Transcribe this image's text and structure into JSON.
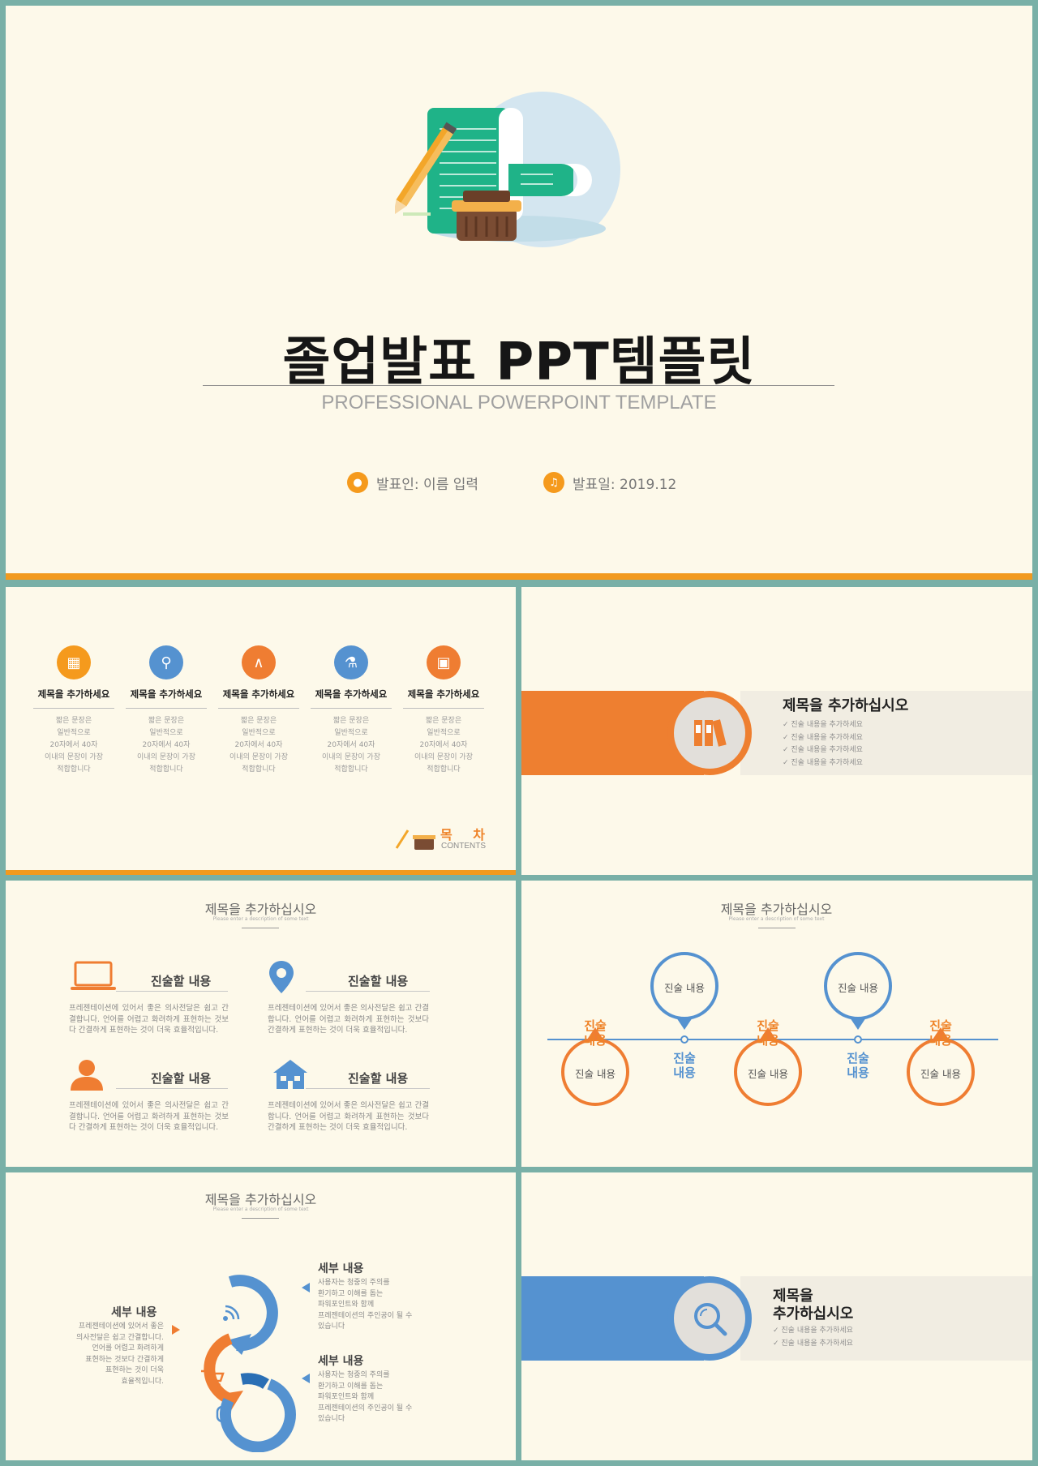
{
  "cover": {
    "title": "졸업발표 PPT템플릿",
    "subtitle": "PROFESSIONAL POWERPOINT TEMPLATE",
    "presenter": "발표인: 이름 입력",
    "date": "발표일: 2019.12",
    "accent": "#f29a1f"
  },
  "toc": {
    "items": [
      {
        "title": "제목을 추가하세요",
        "text": [
          "짧은 문장은",
          "일반적으로",
          "20자에서 40자",
          "이내의 문장이 가장",
          "적합합니다"
        ],
        "icon": "binders-icon",
        "color": "#f59a1d"
      },
      {
        "title": "제목을 추가하세요",
        "text": [
          "짧은 문장은",
          "일반적으로",
          "20자에서 40자",
          "이내의 문장이 가장",
          "적합합니다"
        ],
        "icon": "search-icon",
        "color": "#5592d0"
      },
      {
        "title": "제목을 추가하세요",
        "text": [
          "짧은 문장은",
          "일반적으로",
          "20자에서 40자",
          "이내의 문장이 가장",
          "적합합니다"
        ],
        "icon": "compass-icon",
        "color": "#ef7d32"
      },
      {
        "title": "제목을 추가하세요",
        "text": [
          "짧은 문장은",
          "일반적으로",
          "20자에서 40자",
          "이내의 문장이 가장",
          "적합합니다"
        ],
        "icon": "microscope-icon",
        "color": "#5592d0"
      },
      {
        "title": "제목을 추가하세요",
        "text": [
          "짧은 문장은",
          "일반적으로",
          "20자에서 40자",
          "이내의 문장이 가장",
          "적합합니다"
        ],
        "icon": "laptop-icon",
        "color": "#ef7d32"
      }
    ],
    "label_ko": "목 차",
    "label_en": "CONTENTS"
  },
  "section1": {
    "title": "제목을 추가하십시오",
    "bullets": [
      "✓ 진술 내용을 추가하세요",
      "✓ 진술 내용을 추가하세요",
      "✓ 진술 내용을 추가하세요",
      "✓ 진술 내용을 추가하세요"
    ],
    "color": "#ee7f30"
  },
  "four": {
    "title": "제목을 추가하십시오",
    "desc": "Please enter a description of some text",
    "blocks": [
      {
        "title": "진술할 내용",
        "text": "프레젠테이션에 있어서 좋은 의사전달은 쉽고 간결합니다. 언어를 어렵고 화려하게 표현하는 것보다 간결하게 표현하는 것이 더욱 효율적입니다.",
        "icon": "laptop-icon",
        "color": "#ef7d32"
      },
      {
        "title": "진술할 내용",
        "text": "프레젠테이션에 있어서 좋은 의사전달은 쉽고 간결합니다. 언어를 어렵고 화려하게 표현하는 것보다 간결하게 표현하는 것이 더욱 효율적입니다.",
        "icon": "location-pin-icon",
        "color": "#5592d0"
      },
      {
        "title": "진술할 내용",
        "text": "프레젠테이션에 있어서 좋은 의사전달은 쉽고 간결합니다. 언어를 어렵고 화려하게 표현하는 것보다 간결하게 표현하는 것이 더욱 효율적입니다.",
        "icon": "person-icon",
        "color": "#ef7d32"
      },
      {
        "title": "진술할 내용",
        "text": "프레젠테이션에 있어서 좋은 의사전달은 쉽고 간결합니다. 언어를 어렵고 화려하게 표현하는 것보다 간결하게 표현하는 것이 더욱 효율적입니다.",
        "icon": "house-icon",
        "color": "#5592d0"
      }
    ]
  },
  "timeline": {
    "title": "제목을 추가하십시오",
    "desc": "Please enter a description of some text",
    "nodes": [
      {
        "label": "진술\n내용",
        "circle": "진술 내용",
        "color": "#ef7d32",
        "side": "below"
      },
      {
        "label": "진술\n내용",
        "circle": "진술 내용",
        "color": "#5592d0",
        "side": "above"
      },
      {
        "label": "진술\n내용",
        "circle": "진술 내용",
        "color": "#ef7d32",
        "side": "below"
      },
      {
        "label": "진술\n내용",
        "circle": "진술 내용",
        "color": "#5592d0",
        "side": "above"
      },
      {
        "label": "진술\n내용",
        "circle": "진술 내용",
        "color": "#ef7d32",
        "side": "below"
      }
    ]
  },
  "cycle": {
    "title": "제목을 추가하십시오",
    "desc": "Please enter a description of some text",
    "left": {
      "title": "세부 내용",
      "text": [
        "프레젠테이션에 있어서 좋은",
        "의사전달은 쉽고 간결합니다.",
        "언어를 어렵고 화려하게",
        "표현하는 것보다 간결하게",
        "표현하는 것이 더욱",
        "효율적입니다."
      ]
    },
    "right_top": {
      "title": "세부 내용",
      "text": [
        "사용자는 청중의 주의를",
        "환기하고 이해를 돕는",
        "파워포인트와 함께",
        "프레젠테이션의 주인공이 될 수",
        "있습니다"
      ]
    },
    "right_bottom": {
      "title": "세부 내용",
      "text": [
        "사용자는 청중의 주의를",
        "환기하고 이해를 돕는",
        "파워포인트와 함께",
        "프레젠테이션의 주인공이 될 수",
        "있습니다"
      ]
    }
  },
  "section2": {
    "title_lines": [
      "제목을",
      "추가하십시오"
    ],
    "bullets": [
      "✓ 진술 내용을 추가하세요",
      "✓ 진술 내용을 추가하세요"
    ],
    "color": "#5592d0"
  }
}
